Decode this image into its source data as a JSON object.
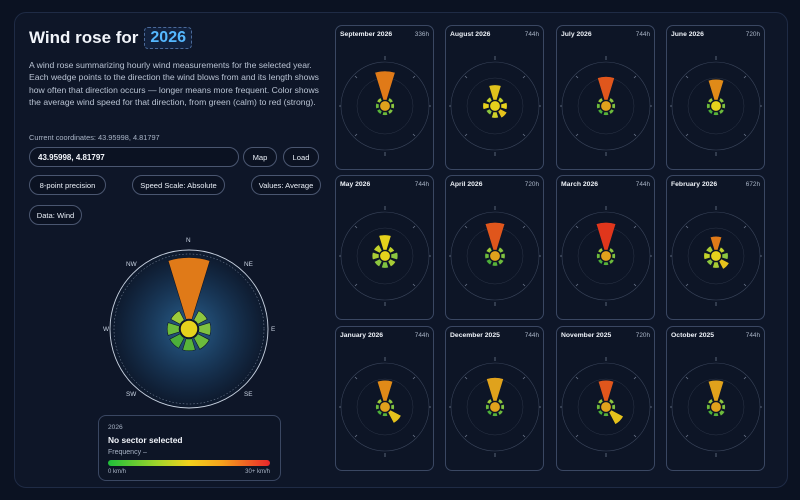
{
  "header": {
    "title_prefix": "Wind rose for",
    "year": "2026",
    "description": "A wind rose summarizing hourly wind measurements for the selected year. Each wedge points to the direction the wind blows from and its length shows how often that direction occurs — longer means more frequent. Color shows the average wind speed for that direction, from green (calm) to red (strong).",
    "coordinates_text": "Current coordinates: 43.95998, 4.81797"
  },
  "controls": {
    "coord_input_value": "43.95998, 4.81797",
    "map_label": "Map",
    "load_label": "Load",
    "precision_label": "8-point precision",
    "speed_scale_label": "Speed Scale: Absolute",
    "values_label": "Values: Average",
    "data_label": "Data: Wind"
  },
  "main_rose": {
    "compass": {
      "n": "N",
      "ne": "NE",
      "e": "E",
      "se": "SE",
      "s": "S",
      "sw": "SW",
      "w": "W",
      "nw": "NW"
    },
    "sectors": [
      {
        "len": 0.52,
        "color": "#e07a18"
      },
      {
        "len": 0.09,
        "color": "#8cc63f"
      },
      {
        "len": 0.1,
        "color": "#7fc241"
      },
      {
        "len": 0.11,
        "color": "#6dbb3c"
      },
      {
        "len": 0.1,
        "color": "#58b43a"
      },
      {
        "len": 0.1,
        "color": "#4caf3a"
      },
      {
        "len": 0.1,
        "color": "#6cbb3b"
      },
      {
        "len": 0.09,
        "color": "#9dcb3a"
      }
    ],
    "center_color": "#e6d21c"
  },
  "legend": {
    "year": "2026",
    "status": "No sector selected",
    "frequency": "Frequency –",
    "min_label": "0 km/h",
    "max_label": "30+ km/h",
    "gradient": [
      "#1fbf3a",
      "#9fd42b",
      "#f2d21c",
      "#f5a31c",
      "#e8262b"
    ]
  },
  "months": [
    {
      "name": "September 2026",
      "hours": "336h",
      "center": "#e0a21c",
      "sectors": [
        {
          "len": 0.42,
          "color": "#e07a18"
        },
        {
          "len": 0.05,
          "color": "#8cc63f"
        },
        {
          "len": 0.05,
          "color": "#8cc63f"
        },
        {
          "len": 0.05,
          "color": "#7fc241"
        },
        {
          "len": 0.05,
          "color": "#6dbb3c"
        },
        {
          "len": 0.05,
          "color": "#58b43a"
        },
        {
          "len": 0.05,
          "color": "#6cbb3b"
        },
        {
          "len": 0.05,
          "color": "#9dcb3a"
        }
      ]
    },
    {
      "name": "August 2026",
      "hours": "744h",
      "center": "#e6d21c",
      "sectors": [
        {
          "len": 0.22,
          "color": "#e0c21c"
        },
        {
          "len": 0.06,
          "color": "#c2d22a"
        },
        {
          "len": 0.09,
          "color": "#e6d21c"
        },
        {
          "len": 0.11,
          "color": "#e6c21c"
        },
        {
          "len": 0.09,
          "color": "#d0d22a"
        },
        {
          "len": 0.06,
          "color": "#8cc63f"
        },
        {
          "len": 0.09,
          "color": "#e6d21c"
        },
        {
          "len": 0.06,
          "color": "#c2d22a"
        }
      ]
    },
    {
      "name": "July 2026",
      "hours": "744h",
      "center": "#e0a21c",
      "sectors": [
        {
          "len": 0.34,
          "color": "#e0561c"
        },
        {
          "len": 0.05,
          "color": "#8cc63f"
        },
        {
          "len": 0.05,
          "color": "#7fc241"
        },
        {
          "len": 0.05,
          "color": "#6dbb3c"
        },
        {
          "len": 0.05,
          "color": "#58b43a"
        },
        {
          "len": 0.05,
          "color": "#4caf3a"
        },
        {
          "len": 0.05,
          "color": "#6cbb3b"
        },
        {
          "len": 0.05,
          "color": "#9dcb3a"
        }
      ]
    },
    {
      "name": "June 2026",
      "hours": "720h",
      "center": "#e6d21c",
      "sectors": [
        {
          "len": 0.3,
          "color": "#e08a18"
        },
        {
          "len": 0.05,
          "color": "#8cc63f"
        },
        {
          "len": 0.05,
          "color": "#7fc241"
        },
        {
          "len": 0.05,
          "color": "#6dbb3c"
        },
        {
          "len": 0.05,
          "color": "#58b43a"
        },
        {
          "len": 0.05,
          "color": "#4caf3a"
        },
        {
          "len": 0.05,
          "color": "#6cbb3b"
        },
        {
          "len": 0.05,
          "color": "#9dcb3a"
        }
      ]
    },
    {
      "name": "May 2026",
      "hours": "744h",
      "center": "#e6d21c",
      "sectors": [
        {
          "len": 0.22,
          "color": "#e6d21c"
        },
        {
          "len": 0.07,
          "color": "#c2d22a"
        },
        {
          "len": 0.1,
          "color": "#8cc63f"
        },
        {
          "len": 0.09,
          "color": "#a8cc35"
        },
        {
          "len": 0.09,
          "color": "#7fc241"
        },
        {
          "len": 0.09,
          "color": "#8cc63f"
        },
        {
          "len": 0.1,
          "color": "#a8cc35"
        },
        {
          "len": 0.1,
          "color": "#c2d22a"
        }
      ]
    },
    {
      "name": "April 2026",
      "hours": "720h",
      "center": "#e0a21c",
      "sectors": [
        {
          "len": 0.4,
          "color": "#e0561c"
        },
        {
          "len": 0.06,
          "color": "#8cc63f"
        },
        {
          "len": 0.06,
          "color": "#7fc241"
        },
        {
          "len": 0.06,
          "color": "#6dbb3c"
        },
        {
          "len": 0.06,
          "color": "#58b43a"
        },
        {
          "len": 0.06,
          "color": "#4caf3a"
        },
        {
          "len": 0.06,
          "color": "#6cbb3b"
        },
        {
          "len": 0.06,
          "color": "#9dcb3a"
        }
      ]
    },
    {
      "name": "March 2026",
      "hours": "744h",
      "center": "#e0a21c",
      "sectors": [
        {
          "len": 0.4,
          "color": "#e0361c"
        },
        {
          "len": 0.05,
          "color": "#8cc63f"
        },
        {
          "len": 0.05,
          "color": "#7fc241"
        },
        {
          "len": 0.05,
          "color": "#6dbb3c"
        },
        {
          "len": 0.05,
          "color": "#58b43a"
        },
        {
          "len": 0.05,
          "color": "#4caf3a"
        },
        {
          "len": 0.05,
          "color": "#6cbb3b"
        },
        {
          "len": 0.05,
          "color": "#9dcb3a"
        }
      ]
    },
    {
      "name": "February 2026",
      "hours": "672h",
      "center": "#e6d21c",
      "sectors": [
        {
          "len": 0.2,
          "color": "#e07a18"
        },
        {
          "len": 0.06,
          "color": "#c2d22a"
        },
        {
          "len": 0.09,
          "color": "#8cc63f"
        },
        {
          "len": 0.13,
          "color": "#e6c21c"
        },
        {
          "len": 0.09,
          "color": "#a8cc35"
        },
        {
          "len": 0.07,
          "color": "#8cc63f"
        },
        {
          "len": 0.09,
          "color": "#c2d22a"
        },
        {
          "len": 0.08,
          "color": "#a8cc35"
        }
      ]
    },
    {
      "name": "January 2026",
      "hours": "744h",
      "center": "#e0a21c",
      "sectors": [
        {
          "len": 0.3,
          "color": "#e08a18"
        },
        {
          "len": 0.05,
          "color": "#8cc63f"
        },
        {
          "len": 0.05,
          "color": "#7fc241"
        },
        {
          "len": 0.18,
          "color": "#e6c21c"
        },
        {
          "len": 0.05,
          "color": "#58b43a"
        },
        {
          "len": 0.05,
          "color": "#4caf3a"
        },
        {
          "len": 0.05,
          "color": "#6cbb3b"
        },
        {
          "len": 0.05,
          "color": "#9dcb3a"
        }
      ]
    },
    {
      "name": "December 2025",
      "hours": "744h",
      "center": "#e0a21c",
      "sectors": [
        {
          "len": 0.34,
          "color": "#e0a21c"
        },
        {
          "len": 0.05,
          "color": "#8cc63f"
        },
        {
          "len": 0.05,
          "color": "#7fc241"
        },
        {
          "len": 0.05,
          "color": "#6dbb3c"
        },
        {
          "len": 0.05,
          "color": "#58b43a"
        },
        {
          "len": 0.05,
          "color": "#4caf3a"
        },
        {
          "len": 0.05,
          "color": "#6cbb3b"
        },
        {
          "len": 0.05,
          "color": "#9dcb3a"
        }
      ]
    },
    {
      "name": "November 2025",
      "hours": "720h",
      "center": "#e0a21c",
      "sectors": [
        {
          "len": 0.3,
          "color": "#e0561c"
        },
        {
          "len": 0.05,
          "color": "#8cc63f"
        },
        {
          "len": 0.05,
          "color": "#7fc241"
        },
        {
          "len": 0.2,
          "color": "#e6c21c"
        },
        {
          "len": 0.05,
          "color": "#58b43a"
        },
        {
          "len": 0.05,
          "color": "#4caf3a"
        },
        {
          "len": 0.05,
          "color": "#6cbb3b"
        },
        {
          "len": 0.05,
          "color": "#9dcb3a"
        }
      ]
    },
    {
      "name": "October 2025",
      "hours": "744h",
      "center": "#e0a21c",
      "sectors": [
        {
          "len": 0.3,
          "color": "#e0a21c"
        },
        {
          "len": 0.05,
          "color": "#8cc63f"
        },
        {
          "len": 0.05,
          "color": "#7fc241"
        },
        {
          "len": 0.06,
          "color": "#6dbb3c"
        },
        {
          "len": 0.05,
          "color": "#58b43a"
        },
        {
          "len": 0.05,
          "color": "#4caf3a"
        },
        {
          "len": 0.05,
          "color": "#6cbb3b"
        },
        {
          "len": 0.05,
          "color": "#9dcb3a"
        }
      ]
    }
  ]
}
